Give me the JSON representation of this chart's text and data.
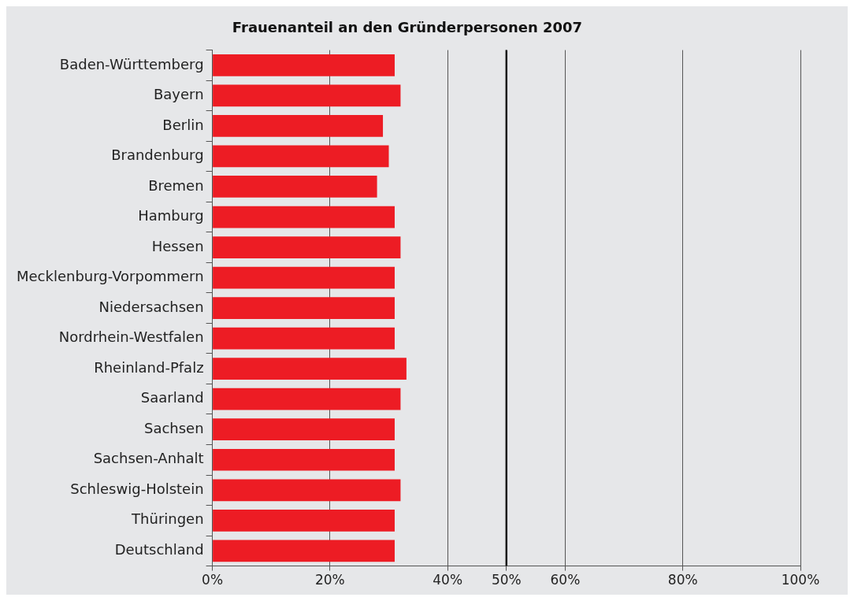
{
  "chart_data": {
    "type": "bar",
    "orientation": "horizontal",
    "title": "Frauenanteil an den Gründerpersonen 2007",
    "categories": [
      "Baden-Württemberg",
      "Bayern",
      "Berlin",
      "Brandenburg",
      "Bremen",
      "Hamburg",
      "Hessen",
      "Mecklenburg-Vorpommern",
      "Niedersachsen",
      "Nordrhein-Westfalen",
      "Rheinland-Pfalz",
      "Saarland",
      "Sachsen",
      "Sachsen-Anhalt",
      "Schleswig-Holstein",
      "Thüringen",
      "Deutschland"
    ],
    "values": [
      31,
      32,
      29,
      30,
      28,
      31,
      32,
      31,
      31,
      31,
      33,
      32,
      31,
      31,
      32,
      31,
      31
    ],
    "color": "#ed1c24",
    "xlim": [
      0,
      100
    ],
    "xticks": [
      {
        "value": 0,
        "label": "0%"
      },
      {
        "value": 20,
        "label": "20%"
      },
      {
        "value": 40,
        "label": "40%"
      },
      {
        "value": 50,
        "label": "50%"
      },
      {
        "value": 60,
        "label": "60%"
      },
      {
        "value": 80,
        "label": "80%"
      },
      {
        "value": 100,
        "label": "100%"
      }
    ],
    "grid": "x",
    "ref_lines": [
      {
        "axis": "x",
        "value": 50,
        "color": "#1a1a1a"
      }
    ]
  }
}
